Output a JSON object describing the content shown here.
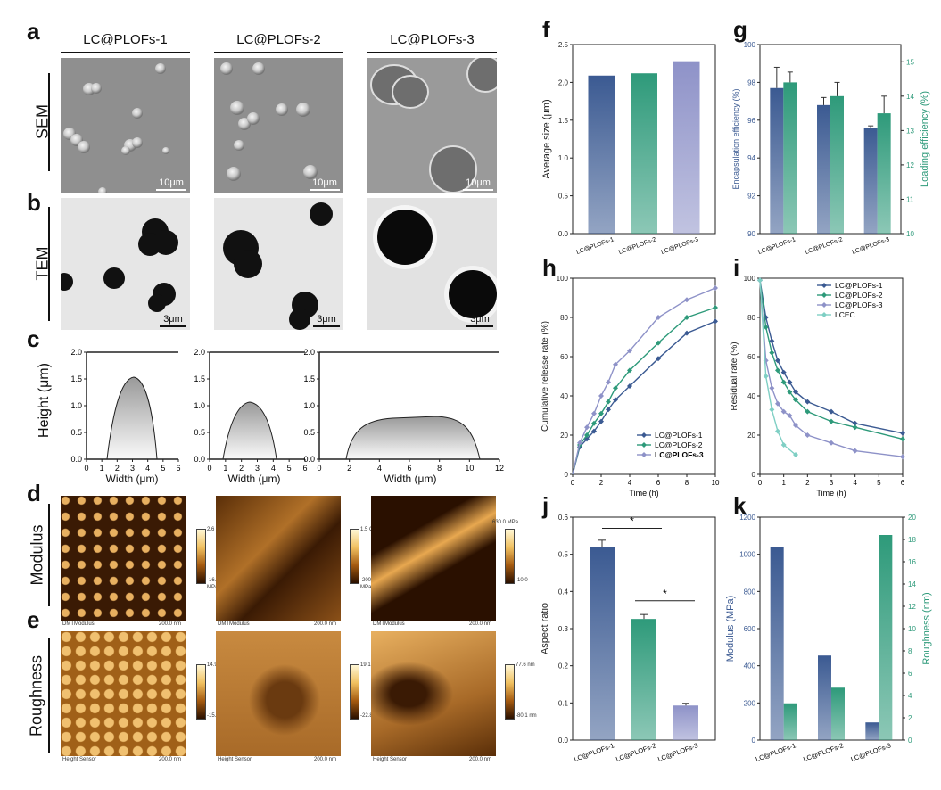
{
  "panels": {
    "a": "a",
    "b": "b",
    "c": "c",
    "d": "d",
    "e": "e",
    "f": "f",
    "g": "g",
    "h": "h",
    "i": "i",
    "j": "j",
    "k": "k"
  },
  "samples": [
    "LC@PLOFs-1",
    "LC@PLOFs-2",
    "LC@PLOFs-3"
  ],
  "rows": {
    "sem": "SEM",
    "tem": "TEM",
    "modulus": "Modulus",
    "roughness": "Roughness"
  },
  "scale": {
    "sem": "10μm",
    "tem": "3μm"
  },
  "c_panel": {
    "ylabel": "Height (μm)",
    "xlabel": "Width (μm)",
    "yticks": [
      "0.0",
      "0.5",
      "1.0",
      "1.5",
      "2.0"
    ],
    "xticks1": [
      "0",
      "1",
      "2",
      "3",
      "4",
      "5",
      "6"
    ],
    "xticks2": [
      "0",
      "1",
      "2",
      "3",
      "4",
      "5",
      "6"
    ],
    "xticks3": [
      "0",
      "2",
      "4",
      "6",
      "8",
      "10",
      "12"
    ]
  },
  "afm": {
    "modulus": [
      {
        "top": "2.6 GPa",
        "bot": "-16.9",
        "unit": "MPa",
        "left": "DMTModulus",
        "right": "200.0 nm"
      },
      {
        "top": "1.5 GPa",
        "bot": "-200.7",
        "unit": "MPa",
        "left": "DMTModulus",
        "right": "200.0 nm"
      },
      {
        "top": "630.0 MPa",
        "bot": "-10.0",
        "unit": "",
        "left": "DMTModulus",
        "right": "200.0 nm"
      }
    ],
    "roughness": [
      {
        "top": "14.9 nm",
        "bot": "-15.2 nm",
        "left": "Height Sensor",
        "right": "200.0 nm"
      },
      {
        "top": "19.1 nm",
        "bot": "-22.8 nm",
        "left": "Height Sensor",
        "right": "200.0 nm"
      },
      {
        "top": "77.6 nm",
        "bot": "-80.1 nm",
        "left": "Height Sensor",
        "right": "200.0 nm"
      }
    ]
  },
  "colors": {
    "s1": "#3b5a92",
    "s2": "#2e9a7a",
    "s3": "#8e92c8",
    "lcec": "#7fcfc4"
  },
  "chart_data": [
    {
      "id": "f",
      "type": "bar",
      "categories": [
        "LC@PLOFs-1",
        "LC@PLOFs-2",
        "LC@PLOFs-3"
      ],
      "values": [
        2.09,
        2.12,
        2.28
      ],
      "ylabel": "Average size (μm)",
      "ylim": [
        0,
        2.5
      ],
      "yticks": [
        "0.0",
        "0.5",
        "1.0",
        "1.5",
        "2.0",
        "2.5"
      ]
    },
    {
      "id": "g",
      "type": "bar",
      "categories": [
        "LC@PLOFs-1",
        "LC@PLOFs-2",
        "LC@PLOFs-3"
      ],
      "series": [
        {
          "values": [
            97.7,
            96.8,
            95.6
          ],
          "errors": [
            1.1,
            0.4,
            0.1
          ]
        },
        {
          "values": [
            14.4,
            14.0,
            13.5
          ],
          "errors": [
            0.3,
            0.4,
            0.5
          ]
        }
      ],
      "ylabel": "Encapsulation efficiency (%)",
      "ylim": [
        90,
        100
      ],
      "yticks": [
        "90",
        "92",
        "94",
        "96",
        "98",
        "100"
      ],
      "y2label": "Loading efficiency (%)",
      "y2lim": [
        10,
        15.5
      ],
      "y2ticks": [
        "10",
        "11",
        "12",
        "13",
        "14",
        "15"
      ]
    },
    {
      "id": "h",
      "type": "line",
      "xlabel": "Time (h)",
      "ylabel": "Cumulative release rate (%)",
      "xlim": [
        0,
        10
      ],
      "ylim": [
        0,
        100
      ],
      "xticks": [
        "0",
        "2",
        "4",
        "6",
        "8",
        "10"
      ],
      "yticks": [
        "0",
        "20",
        "40",
        "60",
        "80",
        "100"
      ],
      "legend": "bottom-right",
      "series": [
        {
          "name": "LC@PLOFs-1",
          "x": [
            0.5,
            1,
            1.5,
            2,
            2.5,
            3,
            4,
            6,
            8,
            10
          ],
          "y": [
            14,
            18,
            22,
            27,
            33,
            38,
            45,
            59,
            72,
            78
          ]
        },
        {
          "name": "LC@PLOFs-2",
          "x": [
            0.5,
            1,
            1.5,
            2,
            2.5,
            3,
            4,
            6,
            8,
            10
          ],
          "y": [
            15,
            20,
            26,
            31,
            37,
            44,
            53,
            67,
            80,
            85
          ]
        },
        {
          "name": "LC@PLOFs-3",
          "x": [
            0.5,
            1,
            1.5,
            2,
            2.5,
            3,
            4,
            6,
            8,
            10
          ],
          "y": [
            16,
            24,
            31,
            40,
            47,
            56,
            63,
            80,
            89,
            95
          ]
        }
      ]
    },
    {
      "id": "i",
      "type": "line",
      "xlabel": "Time (h)",
      "ylabel": "Residual rate (%)",
      "xlim": [
        0,
        6
      ],
      "ylim": [
        0,
        100
      ],
      "xticks": [
        "0",
        "1",
        "2",
        "3",
        "4",
        "5",
        "6"
      ],
      "yticks": [
        "0",
        "20",
        "40",
        "60",
        "80",
        "100"
      ],
      "legend": "top-right",
      "series": [
        {
          "name": "LC@PLOFs-1",
          "x": [
            0,
            0.25,
            0.5,
            0.75,
            1,
            1.25,
            1.5,
            2,
            3,
            4,
            6
          ],
          "y": [
            99,
            80,
            68,
            58,
            52,
            47,
            42,
            37,
            32,
            26,
            21
          ]
        },
        {
          "name": "LC@PLOFs-2",
          "x": [
            0,
            0.25,
            0.5,
            0.75,
            1,
            1.25,
            1.5,
            2,
            3,
            4,
            6
          ],
          "y": [
            99,
            75,
            62,
            53,
            47,
            42,
            38,
            32,
            27,
            24,
            18
          ]
        },
        {
          "name": "LC@PLOFs-3",
          "x": [
            0,
            0.25,
            0.5,
            0.75,
            1,
            1.25,
            1.5,
            2,
            3,
            4,
            6
          ],
          "y": [
            99,
            58,
            44,
            36,
            32,
            30,
            25,
            20,
            16,
            12,
            9
          ]
        },
        {
          "name": "LCEC",
          "x": [
            0,
            0.25,
            0.5,
            0.75,
            1,
            1.5
          ],
          "y": [
            99,
            50,
            33,
            22,
            15,
            10
          ]
        }
      ]
    },
    {
      "id": "j",
      "type": "bar",
      "categories": [
        "LC@PLOFs-1",
        "LC@PLOFs-2",
        "LC@PLOFs-3"
      ],
      "values": [
        0.52,
        0.326,
        0.093
      ],
      "errors": [
        0.018,
        0.012,
        0.006
      ],
      "ylabel": "Aspect ratio",
      "ylim": [
        0,
        0.6
      ],
      "yticks": [
        "0.0",
        "0.1",
        "0.2",
        "0.3",
        "0.4",
        "0.5",
        "0.6"
      ],
      "significance": [
        "*",
        "*"
      ]
    },
    {
      "id": "k",
      "type": "bar",
      "categories": [
        "LC@PLOFs-1",
        "LC@PLOFs-2",
        "LC@PLOFs-3"
      ],
      "series": [
        {
          "values": [
            1040,
            455,
            95
          ]
        },
        {
          "values": [
            3.3,
            4.7,
            18.4
          ]
        }
      ],
      "ylabel": "Modulus (MPa)",
      "ylim": [
        0,
        1200
      ],
      "yticks": [
        "0",
        "200",
        "400",
        "600",
        "800",
        "1000",
        "1200"
      ],
      "y2label": "Roughness (nm)",
      "y2lim": [
        0,
        20
      ],
      "y2ticks": [
        "0",
        "2",
        "4",
        "6",
        "8",
        "10",
        "12",
        "14",
        "16",
        "18",
        "20"
      ]
    }
  ]
}
